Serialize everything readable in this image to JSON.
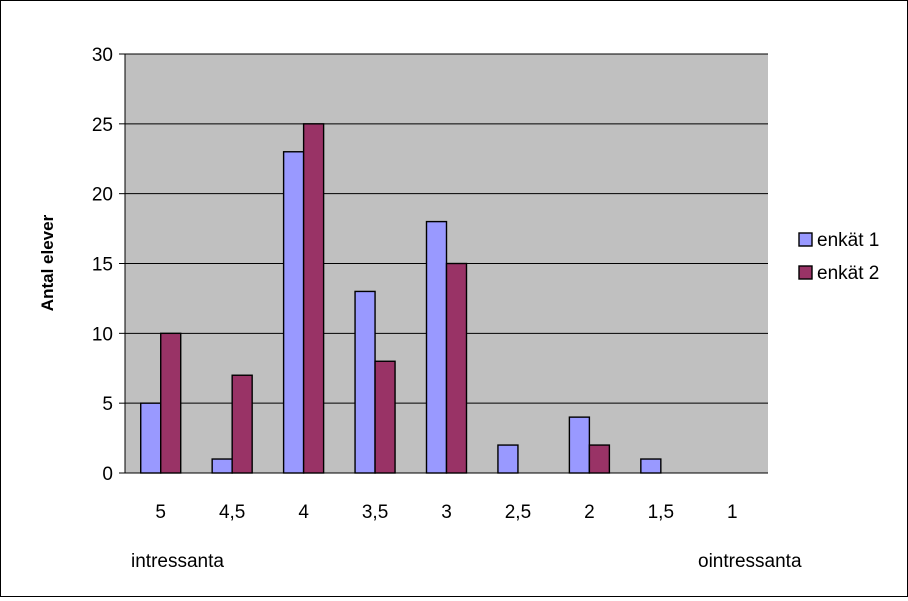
{
  "chart_data": {
    "type": "bar",
    "title": "",
    "xlabel": "",
    "ylabel": "Antal elever",
    "ylim": [
      0,
      30
    ],
    "yticks": [
      0,
      5,
      10,
      15,
      20,
      25,
      30
    ],
    "grid": true,
    "legend_position": "right",
    "categories": [
      "5",
      "4,5",
      "4",
      "3,5",
      "3",
      "2,5",
      "2",
      "1,5",
      "1"
    ],
    "series": [
      {
        "name": "enkät 1",
        "color": "#9999ff",
        "values": [
          5,
          1,
          23,
          13,
          18,
          2,
          4,
          1,
          0
        ]
      },
      {
        "name": "enkät 2",
        "color": "#993366",
        "values": [
          10,
          7,
          25,
          8,
          15,
          0,
          2,
          0,
          0
        ]
      }
    ],
    "annotations": {
      "left": "intressanta",
      "right": "ointressanta"
    },
    "plot_background": "#c0c0c0"
  }
}
